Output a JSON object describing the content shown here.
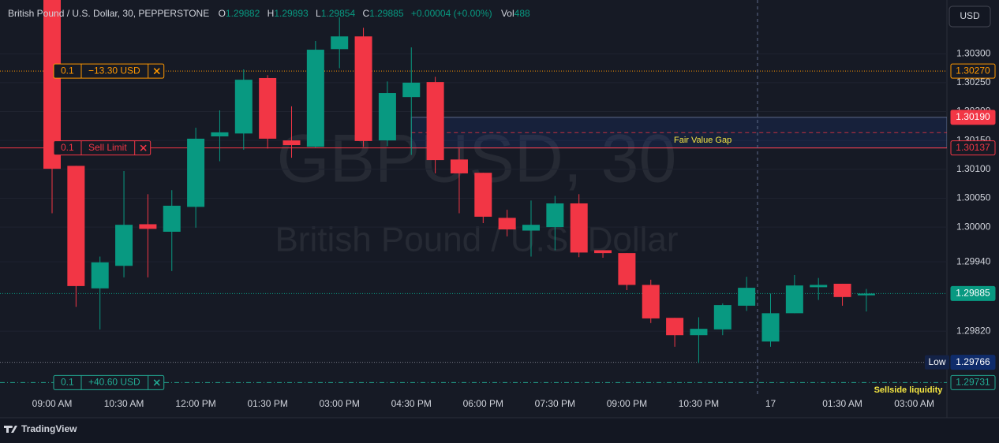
{
  "chart_data": {
    "type": "candlestick",
    "title": "British Pound / U.S. Dollar, 30, PEPPERSTONE",
    "header": {
      "labels": [
        "O",
        "H",
        "L",
        "C"
      ],
      "change": "+0.00004 (+0.00%)",
      "volume_label": "Vol",
      "volume": 488
    },
    "watermark": [
      "GBPUSD, 30",
      "British Pound / U.S. Dollar"
    ],
    "currency": "USD",
    "branding": "TradingView",
    "categories": [
      "09:00 AM",
      null,
      null,
      "10:30 AM",
      null,
      null,
      "12:00 PM",
      null,
      null,
      "01:30 PM",
      null,
      null,
      "03:00 PM",
      null,
      null,
      "04:30 PM",
      null,
      null,
      "06:00 PM",
      null,
      null,
      "07:30 PM",
      null,
      null,
      "09:00 PM",
      null,
      null,
      "10:30 PM",
      null,
      null,
      "17",
      null,
      null,
      "01:30 AM",
      null,
      null,
      "03:00 AM"
    ],
    "open": [
      1.304,
      1.30106,
      1.29894,
      1.29933,
      1.30005,
      1.29992,
      1.30035,
      1.30157,
      1.30162,
      1.30258,
      1.3015,
      1.30139,
      1.30308,
      1.3033,
      1.3015,
      1.30225,
      1.30251,
      1.30117,
      1.30094,
      1.30016,
      1.29994,
      1.3,
      1.30041,
      1.2996,
      1.29955,
      1.299,
      1.29843,
      1.29813,
      1.29823,
      1.29864,
      1.29802,
      1.29851,
      1.29896,
      1.29902,
      1.29882,
      null,
      null
    ],
    "high": [
      1.3042,
      1.30106,
      1.29949,
      1.30097,
      1.30057,
      1.30064,
      1.30172,
      1.30202,
      1.30273,
      1.30263,
      1.30209,
      1.30322,
      1.30363,
      1.30345,
      1.30252,
      1.30311,
      1.3026,
      1.30136,
      1.30094,
      1.3003,
      1.30046,
      1.30054,
      1.30057,
      1.2996,
      1.29955,
      1.29909,
      1.29843,
      1.29844,
      1.29868,
      1.29914,
      1.29885,
      1.29917,
      1.29912,
      1.29902,
      1.29893,
      null,
      null
    ],
    "low": [
      1.30024,
      1.29862,
      1.29823,
      1.29913,
      1.29913,
      1.29924,
      1.29999,
      1.30114,
      1.30134,
      1.30136,
      1.3012,
      1.30138,
      1.30275,
      1.30139,
      1.3014,
      1.30125,
      1.30093,
      1.30024,
      1.30007,
      1.29984,
      1.29949,
      1.2996,
      1.29948,
      1.29947,
      1.29891,
      1.29834,
      1.29793,
      1.29765,
      1.29813,
      1.29855,
      1.29793,
      1.29851,
      1.29874,
      1.29864,
      1.29854,
      null,
      null
    ],
    "close": [
      1.30101,
      1.29898,
      1.29939,
      1.30004,
      1.29997,
      1.30037,
      1.30153,
      1.30164,
      1.30255,
      1.30153,
      1.30142,
      1.30307,
      1.3033,
      1.30149,
      1.30232,
      1.3025,
      1.30116,
      1.30093,
      1.30018,
      1.29996,
      1.30004,
      1.30041,
      1.29956,
      1.29955,
      1.299,
      1.29842,
      1.29813,
      1.29824,
      1.29865,
      1.29895,
      1.29851,
      1.29899,
      1.299,
      1.29879,
      1.29885,
      null,
      null
    ],
    "up_color": "#089981",
    "down_color": "#f23645",
    "ylim": [
      1.29711,
      1.30393
    ],
    "yticks": [
      {
        "value": 1.303,
        "label": "1.30300"
      },
      {
        "value": 1.3025,
        "label": "1.30250"
      },
      {
        "value": 1.302,
        "label": "1.30200"
      },
      {
        "value": 1.3015,
        "label": "1.30150"
      },
      {
        "value": 1.301,
        "label": "1.30100"
      },
      {
        "value": 1.3005,
        "label": "1.30050"
      },
      {
        "value": 1.3,
        "label": "1.30000"
      },
      {
        "value": 1.2994,
        "label": "1.29940"
      },
      {
        "value": 1.2982,
        "label": "1.29820"
      }
    ],
    "grid": true,
    "low_marker": {
      "text": "Low",
      "price": {
        "value": 1.29766,
        "label": "1.29766"
      }
    },
    "orders": [
      {
        "quantity": 0.1,
        "text": "−13.30 USD",
        "price": {
          "value": 1.3027,
          "label": "1.30270"
        },
        "color": "#ff9800",
        "style": "dotted"
      },
      {
        "quantity": 0.1,
        "text": "Sell Limit",
        "price": {
          "value": 1.30137,
          "label": "1.30137"
        },
        "color": "#f23645",
        "style": "solid"
      },
      {
        "quantity": 0.1,
        "text": "+40.60 USD",
        "price": {
          "value": 1.29731,
          "label": "1.29731"
        },
        "color": "#22ab94",
        "style": "dashdot"
      }
    ],
    "fvg": {
      "text": "Fair Value Gap",
      "x_start": "04:30 PM",
      "top": {
        "value": 1.3019,
        "label": "1.30190"
      },
      "bottom": 1.30137
    },
    "annotations": [
      {
        "text": "Sellside liquidity",
        "price": 1.29731
      }
    ]
  }
}
